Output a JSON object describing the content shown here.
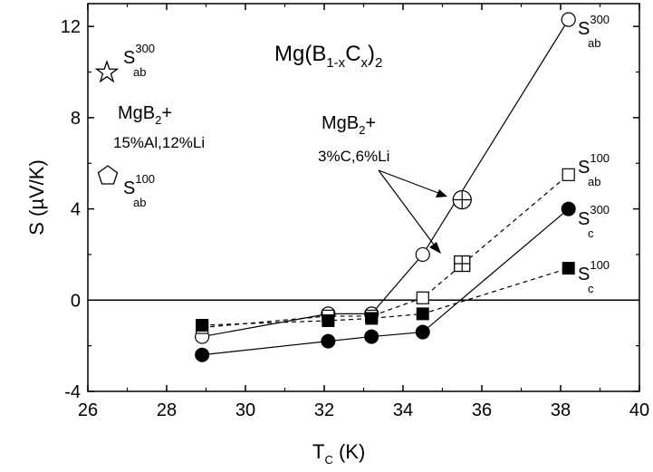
{
  "chart_data": {
    "type": "scatter",
    "title": {
      "prefix": "Mg(B",
      "sub1": "1-x",
      "mid": "C",
      "sub2": "x",
      "close": ")",
      "sub3": "2"
    },
    "xlabel": {
      "main": "T",
      "sub": "C",
      "rest": " (K)"
    },
    "ylabel": "S (µV/K)",
    "xlim": [
      26,
      40
    ],
    "ylim": [
      -4,
      13
    ],
    "x_ticks": [
      26,
      28,
      30,
      32,
      34,
      36,
      38,
      40
    ],
    "y_ticks": [
      -4,
      0,
      4,
      8,
      12
    ],
    "x_tick_labels": [
      "26",
      "28",
      "30",
      "32",
      "34",
      "36",
      "38",
      "40"
    ],
    "y_tick_labels": [
      "-4",
      "0",
      "4",
      "8",
      "12"
    ],
    "zero_line": true,
    "grid": false,
    "series": [
      {
        "label": {
          "main": "S",
          "sup": "300",
          "sub": "ab"
        },
        "marker": "circle-open",
        "line": "solid",
        "x": [
          28.9,
          32.1,
          33.2,
          34.5,
          38.2
        ],
        "y": [
          -1.6,
          -0.6,
          -0.6,
          2.0,
          12.3
        ]
      },
      {
        "label": {
          "main": "S",
          "sup": "100",
          "sub": "ab"
        },
        "marker": "square-open",
        "line": "dashed",
        "x": [
          28.9,
          32.1,
          33.2,
          34.5,
          38.2
        ],
        "y": [
          -1.2,
          -0.7,
          -0.7,
          0.1,
          5.5
        ]
      },
      {
        "label": {
          "main": "S",
          "sup": "300",
          "sub": "c"
        },
        "marker": "circle-filled",
        "line": "solid",
        "x": [
          28.9,
          32.1,
          33.2,
          34.5,
          38.2
        ],
        "y": [
          -2.4,
          -1.8,
          -1.6,
          -1.4,
          4.0
        ]
      },
      {
        "label": {
          "main": "S",
          "sup": "100",
          "sub": "c"
        },
        "marker": "square-filled",
        "line": "dashed",
        "x": [
          28.9,
          32.1,
          33.2,
          34.5,
          38.2
        ],
        "y": [
          -1.1,
          -0.9,
          -0.8,
          -0.6,
          1.4
        ]
      }
    ],
    "special_points": [
      {
        "x": 35.5,
        "y": 4.4,
        "marker": "circle-crossed"
      },
      {
        "x": 35.5,
        "y": 1.6,
        "marker": "square-crossed"
      }
    ],
    "annotations": {
      "mgb2_c_li": {
        "line1": "MgB",
        "line1_sub": "2",
        "line1_rest": "+",
        "line2": "3%C,6%Li"
      },
      "mgb2_al_li": {
        "line1": "MgB",
        "line1_sub": "2",
        "line1_rest": "+",
        "line2": "15%Al,12%Li"
      },
      "star_label": {
        "main": "S",
        "sup": "300",
        "sub": "ab",
        "marker": "star-open"
      },
      "pentagon_label": {
        "main": "S",
        "sup": "100",
        "sub": "ab",
        "marker": "pentagon-open"
      }
    }
  }
}
